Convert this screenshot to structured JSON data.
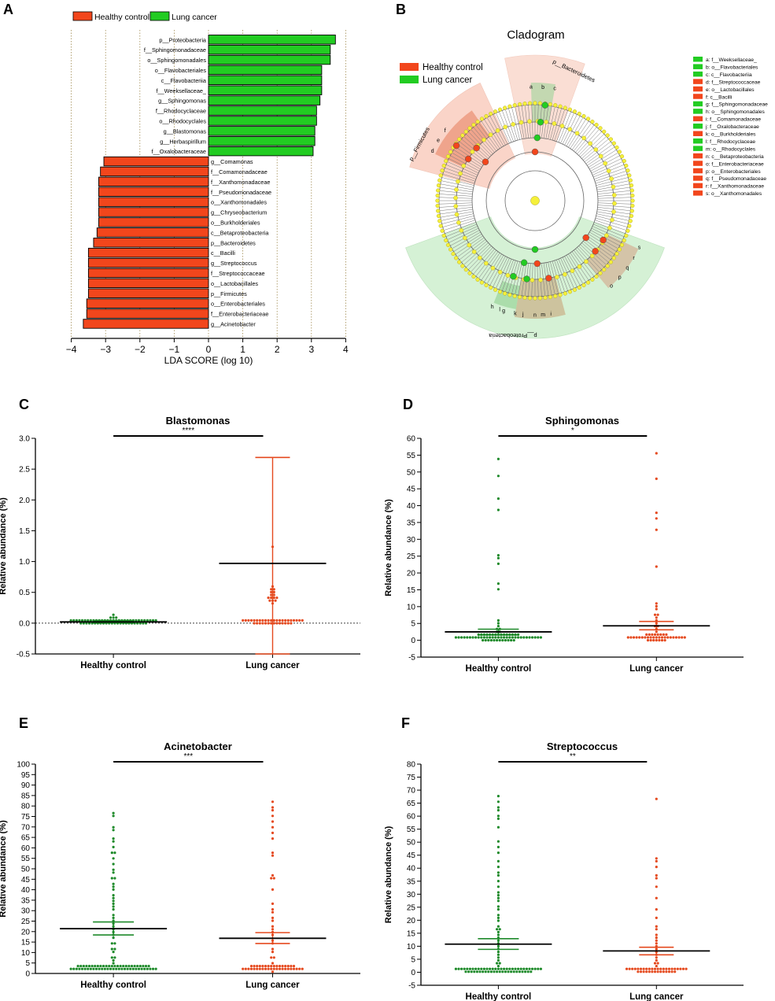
{
  "colors": {
    "hc": "#f2461c",
    "lc": "#22cc22",
    "hc_dots": "#e54a1f",
    "lc_dots": "#1e8a2a",
    "axis": "#000000"
  },
  "panel_labels": [
    "A",
    "B",
    "C",
    "D",
    "E",
    "F"
  ],
  "chart_data": [
    {
      "id": "A",
      "type": "bar",
      "orientation": "horizontal",
      "title": "",
      "xlabel": "LDA SCORE (log 10)",
      "xlim": [
        -4,
        4
      ],
      "xticks": [
        "−4",
        "−3",
        "−2",
        "−1",
        "0",
        "1",
        "2",
        "3",
        "4"
      ],
      "legend": [
        "Healthy control",
        "Lung cancer"
      ],
      "categories": [
        "p__Proteobacteria",
        "f__Sphingomonadaceae",
        "o__Sphingomonadales",
        "o__Flavobacteriales",
        "c__Flavobacteriia",
        "f__Weeksellaceae_",
        "g__Sphingomonas",
        "f__Rhodocyclaceae",
        "o__Rhodocyclales",
        "g__Blastomonas",
        "g__Herbaspirillum",
        "f__Oxalobacteraceae",
        "g__Comamonas",
        "f__Comamonadaceae",
        "f__Xanthomonadaceae",
        "f__Pseudomonadaceae",
        "o__Xanthomonadales",
        "g__Chryseobacterium",
        "o__Burkholderiales",
        "c__Betaproteobacteria",
        "p__Bacteroidetes",
        "c__Bacilli",
        "g__Streptococcus",
        "f__Streptococcaceae",
        "o__Lactobacillales",
        "p__Firmicutes",
        "o__Enterobacteriales",
        "f__Enterobacteriaceae",
        "g__Acinetobacter"
      ],
      "values": [
        3.7,
        3.55,
        3.55,
        3.3,
        3.3,
        3.3,
        3.25,
        3.15,
        3.15,
        3.1,
        3.1,
        3.05,
        -3.05,
        -3.15,
        -3.2,
        -3.2,
        -3.2,
        -3.2,
        -3.2,
        -3.25,
        -3.35,
        -3.5,
        -3.5,
        -3.5,
        -3.5,
        -3.5,
        -3.55,
        -3.55,
        -3.65
      ],
      "groups": [
        "lc",
        "lc",
        "lc",
        "lc",
        "lc",
        "lc",
        "lc",
        "lc",
        "lc",
        "lc",
        "lc",
        "lc",
        "hc",
        "hc",
        "hc",
        "hc",
        "hc",
        "hc",
        "hc",
        "hc",
        "hc",
        "hc",
        "hc",
        "hc",
        "hc",
        "hc",
        "hc",
        "hc",
        "hc"
      ]
    },
    {
      "id": "B",
      "type": "cladogram",
      "title": "Cladogram",
      "legend": [
        "Healthy control",
        "Lung cancer"
      ],
      "clade_labels": [
        "p__Bacteroidetes",
        "p__Firmicutes",
        "p__Proteobacteria"
      ],
      "key": [
        {
          "label": "a: f__Weeksellaceae_",
          "group": "lc"
        },
        {
          "label": "b: o__Flavobacteriales",
          "group": "lc"
        },
        {
          "label": "c: c__Flavobacteriia",
          "group": "lc"
        },
        {
          "label": "d: f__Streptococcaceae",
          "group": "hc"
        },
        {
          "label": "e: o__Lactobacillales",
          "group": "hc"
        },
        {
          "label": "f: c__Bacilli",
          "group": "hc"
        },
        {
          "label": "g: f__Sphingomonadaceae",
          "group": "lc"
        },
        {
          "label": "h: o__Sphingomonadales",
          "group": "lc"
        },
        {
          "label": "i: f__Comamonadaceae",
          "group": "hc"
        },
        {
          "label": "j: f__Oxalobacteraceae",
          "group": "lc"
        },
        {
          "label": "k: o__Burkholderiales",
          "group": "hc"
        },
        {
          "label": "l: f__Rhodocyclaceae",
          "group": "lc"
        },
        {
          "label": "m: o__Rhodocyclales",
          "group": "lc"
        },
        {
          "label": "n: c__Betaproteobacteria",
          "group": "hc"
        },
        {
          "label": "o: f__Enterobacteriaceae",
          "group": "hc"
        },
        {
          "label": "p: o__Enterobacteriales",
          "group": "hc"
        },
        {
          "label": "q: f__Pseudomonadaceae",
          "group": "hc"
        },
        {
          "label": "r: f__Xanthomonadaceae",
          "group": "hc"
        },
        {
          "label": "s: o__Xanthomonadales",
          "group": "hc"
        }
      ],
      "sector_letters": [
        "f",
        "e",
        "d",
        "c",
        "b",
        "a",
        "s",
        "r",
        "q",
        "p",
        "o",
        "n",
        "k",
        "l",
        "i",
        "j",
        "h",
        "g",
        "m"
      ]
    },
    {
      "id": "C",
      "type": "scatter",
      "title": "Blastomonas",
      "ylabel": "Relative abundance (%)",
      "ylim": [
        -0.5,
        3.0
      ],
      "yticks": [
        "3.0",
        "2.5",
        "2.0",
        "1.5",
        "1.0",
        "0.5",
        "0.0",
        "-0.5"
      ],
      "ytick_values": [
        3.0,
        2.5,
        2.0,
        1.5,
        1.0,
        0.5,
        0.0,
        -0.5
      ],
      "categories": [
        "Healthy control",
        "Lung cancer"
      ],
      "significance": "****",
      "dashed_zero": true,
      "groups": [
        {
          "name": "Healthy control",
          "mean": 0.02,
          "err_low": 0.01,
          "err_high": 0.04,
          "n": 150,
          "values": [
            0.13,
            0.11,
            0.08,
            0.07,
            0.06,
            0.05,
            0.04,
            0.03
          ]
        },
        {
          "name": "Lung cancer",
          "mean": 0.97,
          "err_low": -0.5,
          "err_high": 2.69,
          "n": 52,
          "values": [
            1.22,
            0.58,
            0.56,
            0.53,
            0.5,
            0.49,
            0.47,
            0.45,
            0.43,
            0.41,
            0.4,
            0.39,
            0.38,
            0.36,
            0.35,
            0.3,
            0.05,
            0.03
          ]
        }
      ]
    },
    {
      "id": "D",
      "type": "scatter",
      "title": "Sphingomonas",
      "ylabel": "Relative abundance (%)",
      "ylim": [
        -5,
        60
      ],
      "yticks": [
        "60",
        "55",
        "50",
        "45",
        "40",
        "35",
        "30",
        "25",
        "20",
        "15",
        "10",
        "5",
        "0",
        "-5"
      ],
      "ytick_values": [
        60,
        55,
        50,
        45,
        40,
        35,
        30,
        25,
        20,
        15,
        10,
        5,
        0,
        -5
      ],
      "categories": [
        "Healthy control",
        "Lung cancer"
      ],
      "significance": "*",
      "groups": [
        {
          "name": "Healthy control",
          "mean": 2.5,
          "err_low": 1.6,
          "err_high": 3.3,
          "n": 175,
          "values": [
            54,
            49,
            42.5,
            38.5,
            25.2,
            24.5,
            22.5,
            17.2,
            15,
            6,
            5,
            4,
            3.5,
            3,
            2.6,
            2.2,
            2,
            1.8,
            1.5,
            1.2,
            1,
            0.8,
            0.6
          ]
        },
        {
          "name": "Lung cancer",
          "mean": 4.3,
          "err_low": 3.1,
          "err_high": 5.6,
          "n": 60,
          "values": [
            55.2,
            48.4,
            37.8,
            36,
            32.5,
            22,
            11,
            10,
            9,
            8,
            7.5,
            6.5,
            5.5,
            5,
            4.5,
            4,
            3,
            2.5,
            2
          ]
        }
      ]
    },
    {
      "id": "E",
      "type": "scatter",
      "title": "Acinetobacter",
      "ylabel": "Relative abundance (%)",
      "ylim": [
        0,
        100
      ],
      "yticks": [
        "100",
        "95",
        "90",
        "85",
        "80",
        "75",
        "70",
        "65",
        "60",
        "55",
        "50",
        "45",
        "40",
        "35",
        "30",
        "25",
        "20",
        "15",
        "10",
        "5",
        "0"
      ],
      "ytick_values": [
        100,
        95,
        90,
        85,
        80,
        75,
        70,
        65,
        60,
        55,
        50,
        45,
        40,
        35,
        30,
        25,
        20,
        15,
        10,
        5,
        0
      ],
      "categories": [
        "Healthy control",
        "Lung cancer"
      ],
      "significance": "***",
      "groups": [
        {
          "name": "Healthy control",
          "mean": 21.4,
          "err_low": 18.4,
          "err_high": 24.6,
          "n": 200,
          "values": [
            76,
            75,
            70,
            68,
            65,
            63,
            60,
            58,
            57,
            55,
            52,
            50,
            48,
            46,
            45,
            43,
            42,
            40,
            38,
            36,
            35,
            33,
            32,
            30,
            28,
            27,
            25,
            24,
            22,
            21,
            20,
            18,
            17,
            15,
            14,
            12,
            11,
            10,
            8,
            7,
            6,
            5,
            4,
            3,
            2
          ]
        },
        {
          "name": "Lung cancer",
          "mean": 16.8,
          "err_low": 14.3,
          "err_high": 19.5,
          "n": 80,
          "values": [
            82,
            80,
            78,
            75,
            73,
            70,
            67,
            64,
            58,
            56,
            47,
            46,
            45,
            40,
            33,
            31,
            29,
            27,
            25,
            23,
            21,
            20,
            18,
            16,
            15,
            12,
            10,
            8,
            7,
            5,
            4,
            3,
            2,
            1
          ]
        }
      ]
    },
    {
      "id": "F",
      "type": "scatter",
      "title": "Streptococcus",
      "ylabel": "Relative abundance (%)",
      "ylim": [
        -5,
        80
      ],
      "yticks": [
        "80",
        "75",
        "70",
        "65",
        "60",
        "55",
        "50",
        "45",
        "40",
        "35",
        "30",
        "25",
        "20",
        "15",
        "10",
        "5",
        "0",
        "-5"
      ],
      "ytick_values": [
        80,
        75,
        70,
        65,
        60,
        55,
        50,
        45,
        40,
        35,
        30,
        25,
        20,
        15,
        10,
        5,
        0,
        -5
      ],
      "categories": [
        "Healthy control",
        "Lung cancer"
      ],
      "significance": "**",
      "groups": [
        {
          "name": "Healthy control",
          "mean": 10.8,
          "err_low": 8.8,
          "err_high": 12.9,
          "n": 200,
          "values": [
            68,
            66,
            63,
            62,
            60,
            59,
            56,
            50,
            48,
            46,
            43,
            40,
            38,
            37,
            35,
            33,
            31,
            30,
            28,
            27,
            25,
            24,
            22,
            21,
            20,
            18,
            17,
            16,
            15,
            14,
            13,
            12,
            11,
            10,
            9,
            8,
            7,
            6,
            5,
            4,
            3,
            2
          ]
        },
        {
          "name": "Lung cancer",
          "mean": 8.2,
          "err_low": 6.7,
          "err_high": 9.6,
          "n": 80,
          "values": [
            67,
            44,
            43,
            40,
            37,
            36,
            33,
            29,
            24,
            21,
            18,
            16,
            14,
            13,
            12,
            11,
            10,
            9,
            8,
            7,
            6,
            5,
            4,
            3,
            2,
            1
          ]
        }
      ]
    }
  ]
}
